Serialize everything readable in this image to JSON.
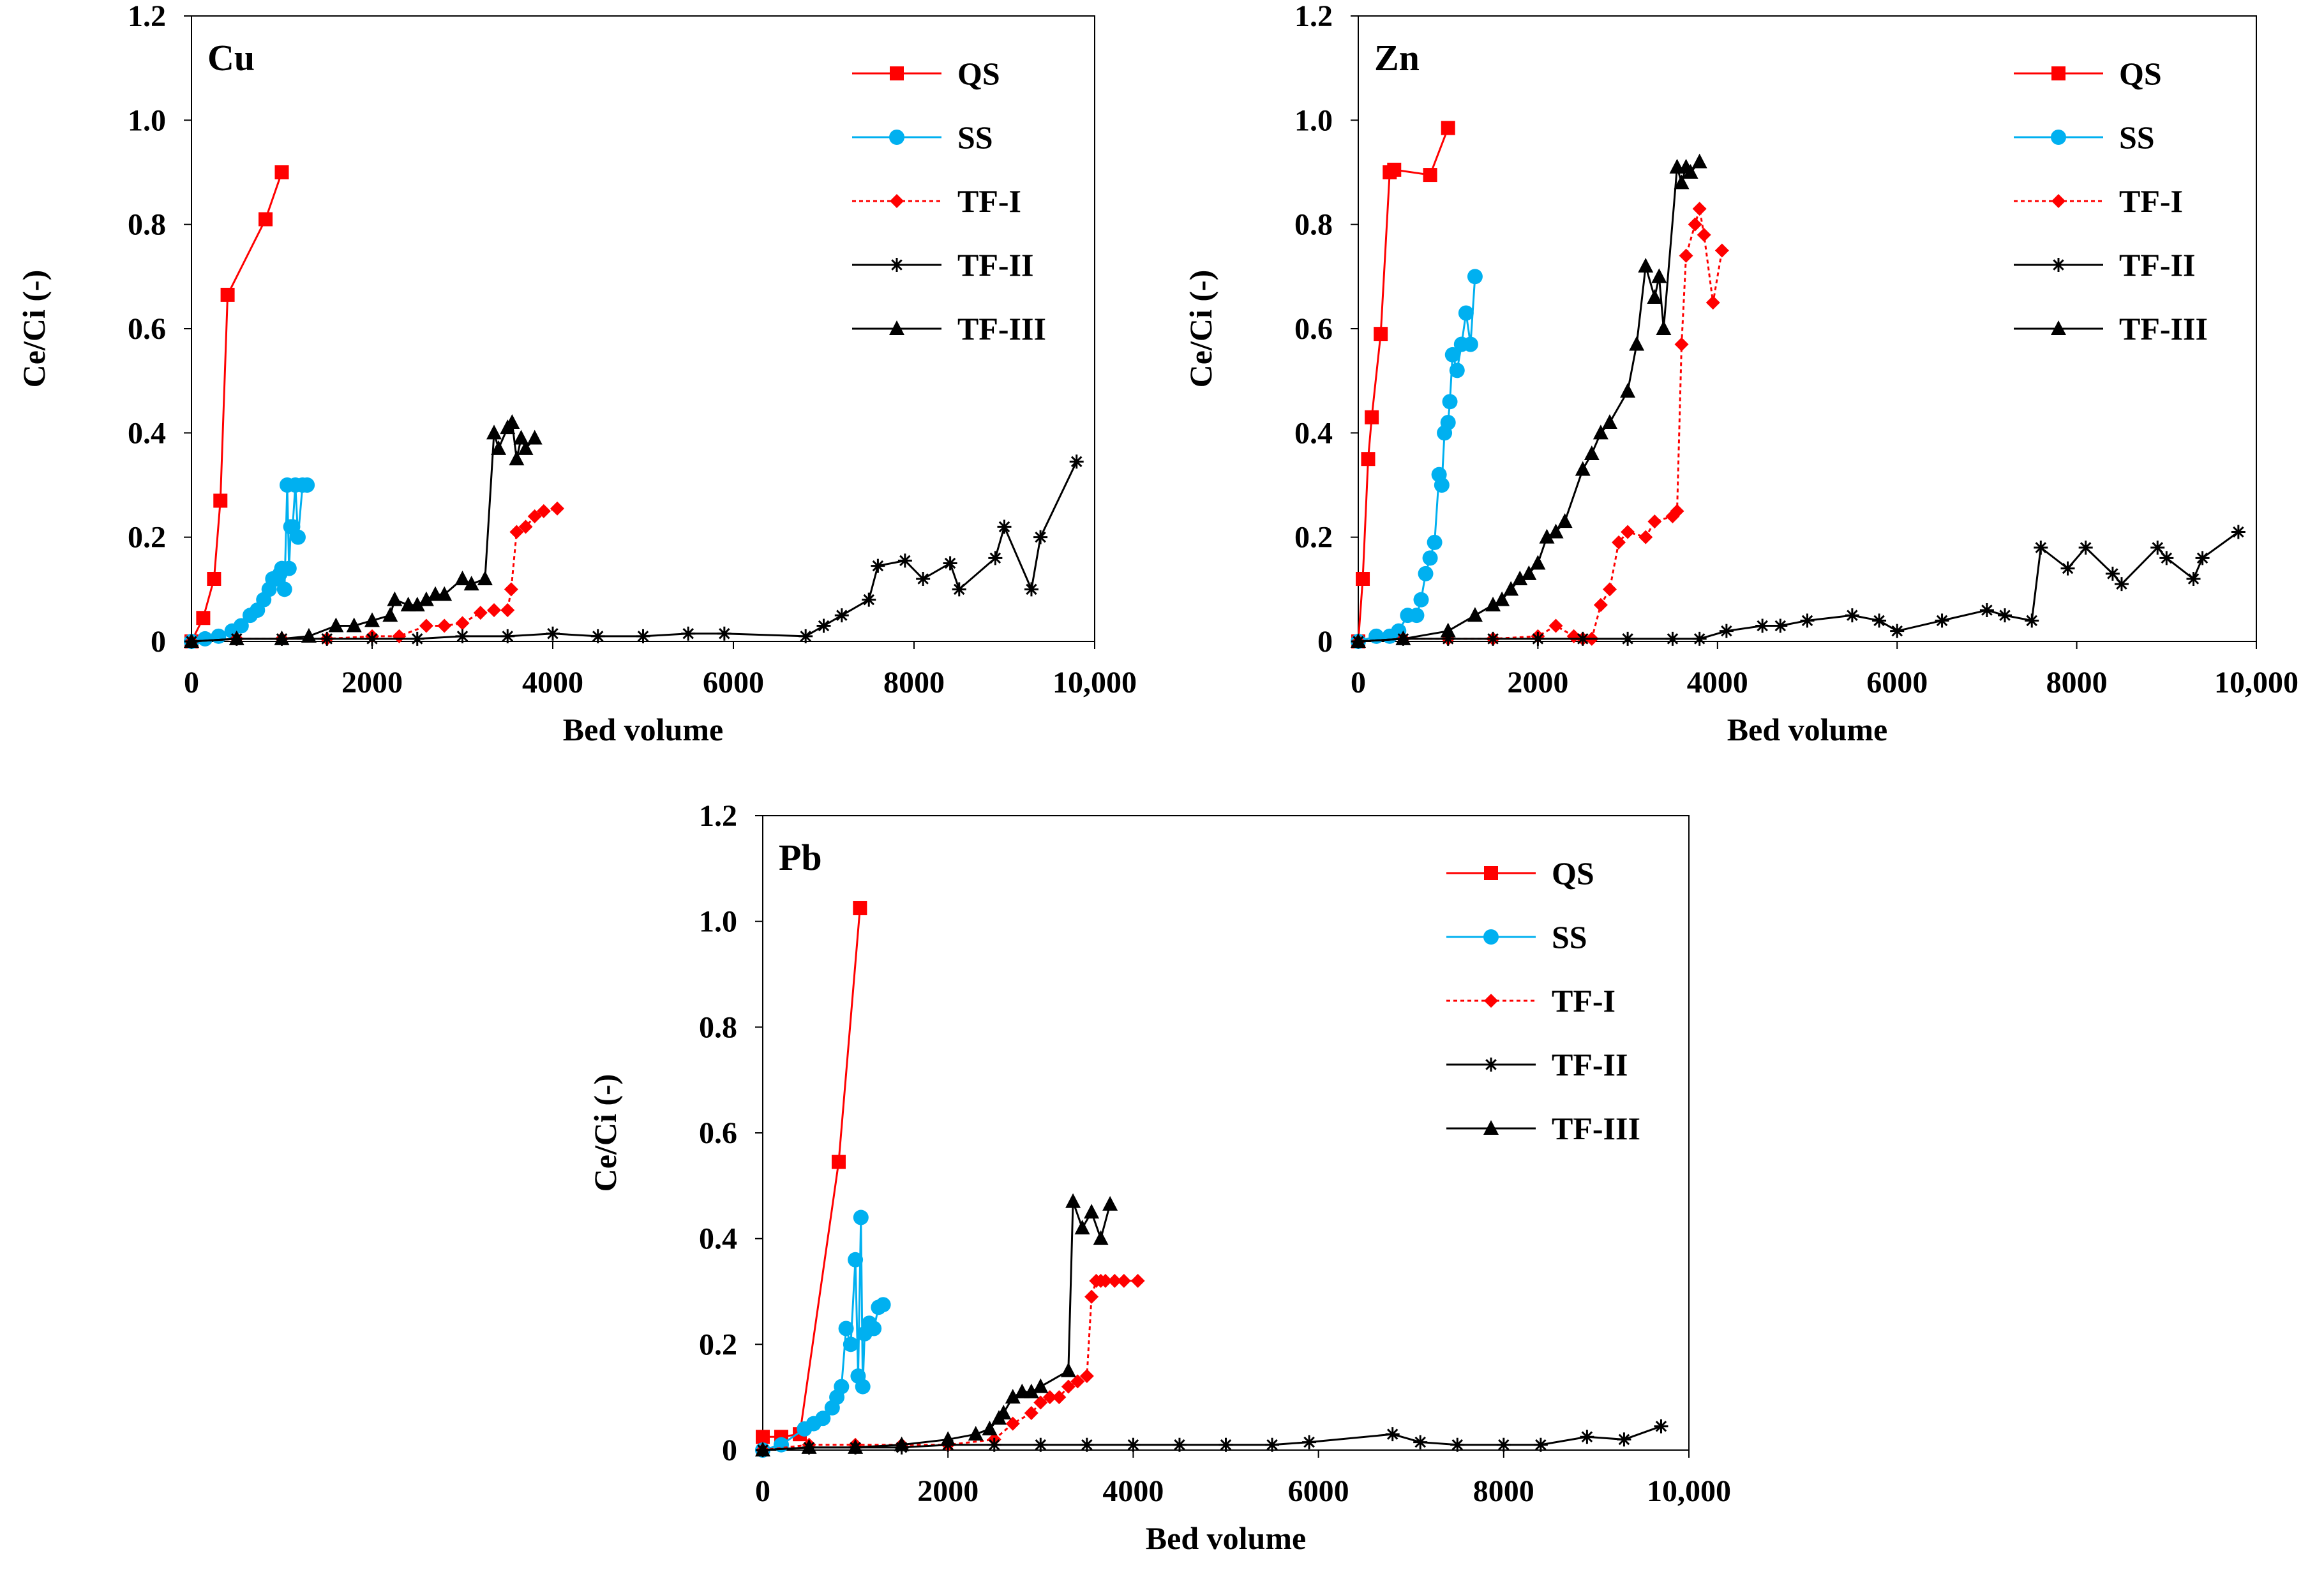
{
  "chart_data": [
    {
      "type": "line",
      "title": "Cu",
      "xlabel": "Bed volume",
      "ylabel": "Ce/Ci (-)",
      "xlim": [
        0,
        10000
      ],
      "ylim": [
        0,
        1.2
      ],
      "xticks": [
        "0",
        "2000",
        "4000",
        "6000",
        "8000",
        "10,000"
      ],
      "yticks": [
        "0",
        "0.2",
        "0.4",
        "0.6",
        "0.8",
        "1.0",
        "1.2"
      ],
      "legend_position": "top-right",
      "series": [
        {
          "name": "QS",
          "color": "#ff0000",
          "marker": "square",
          "dash": "solid",
          "x": [
            0,
            130,
            250,
            320,
            400,
            820,
            1000
          ],
          "y": [
            0,
            0.045,
            0.12,
            0.27,
            0.665,
            0.81,
            0.9
          ]
        },
        {
          "name": "SS",
          "color": "#00b0f0",
          "marker": "circle",
          "dash": "solid",
          "x": [
            0,
            150,
            300,
            450,
            550,
            650,
            730,
            800,
            860,
            900,
            950,
            980,
            1000,
            1030,
            1060,
            1080,
            1100,
            1120,
            1150,
            1180,
            1230,
            1280
          ],
          "y": [
            0,
            0.005,
            0.01,
            0.02,
            0.03,
            0.05,
            0.06,
            0.08,
            0.1,
            0.12,
            0.12,
            0.13,
            0.14,
            0.1,
            0.3,
            0.14,
            0.22,
            0.22,
            0.3,
            0.2,
            0.3,
            0.3
          ]
        },
        {
          "name": "TF-I",
          "color": "#ff0000",
          "marker": "diamond",
          "dash": "dashed",
          "x": [
            0,
            500,
            1000,
            1500,
            2000,
            2300,
            2600,
            2800,
            3000,
            3200,
            3350,
            3500,
            3540,
            3600,
            3700,
            3800,
            3900,
            4050
          ],
          "y": [
            0,
            0.005,
            0.005,
            0.005,
            0.01,
            0.01,
            0.03,
            0.03,
            0.035,
            0.055,
            0.06,
            0.06,
            0.1,
            0.21,
            0.22,
            0.24,
            0.25,
            0.255
          ]
        },
        {
          "name": "TF-II",
          "color": "#000000",
          "marker": "star",
          "dash": "solid",
          "x": [
            0,
            500,
            1000,
            1500,
            2000,
            2500,
            3000,
            3500,
            4000,
            4500,
            5000,
            5500,
            5900,
            6800,
            7000,
            7200,
            7500,
            7600,
            7900,
            8100,
            8400,
            8500,
            8900,
            9000,
            9300,
            9400,
            9800
          ],
          "y": [
            0,
            0.005,
            0.005,
            0.005,
            0.005,
            0.005,
            0.01,
            0.01,
            0.015,
            0.01,
            0.01,
            0.015,
            0.015,
            0.01,
            0.03,
            0.05,
            0.08,
            0.145,
            0.155,
            0.12,
            0.15,
            0.1,
            0.16,
            0.22,
            0.1,
            0.2,
            0.345
          ]
        },
        {
          "name": "TF-III",
          "color": "#000000",
          "marker": "triangle",
          "dash": "solid",
          "x": [
            0,
            500,
            1000,
            1300,
            1600,
            1800,
            2000,
            2200,
            2250,
            2400,
            2500,
            2600,
            2700,
            2800,
            3000,
            3100,
            3250,
            3350,
            3400,
            3500,
            3550,
            3600,
            3650,
            3700,
            3800
          ],
          "y": [
            0,
            0.005,
            0.005,
            0.01,
            0.03,
            0.03,
            0.04,
            0.05,
            0.08,
            0.07,
            0.07,
            0.08,
            0.09,
            0.09,
            0.12,
            0.11,
            0.12,
            0.4,
            0.37,
            0.41,
            0.42,
            0.35,
            0.39,
            0.37,
            0.39
          ]
        }
      ]
    },
    {
      "type": "line",
      "title": "Zn",
      "xlabel": "Bed volume",
      "ylabel": "Ce/Ci (-)",
      "xlim": [
        0,
        10000
      ],
      "ylim": [
        0,
        1.2
      ],
      "xticks": [
        "0",
        "2000",
        "4000",
        "6000",
        "8000",
        "10,000"
      ],
      "yticks": [
        "0",
        "0.2",
        "0.4",
        "0.6",
        "0.8",
        "1.0",
        "1.2"
      ],
      "legend_position": "top-right",
      "series": [
        {
          "name": "QS",
          "color": "#ff0000",
          "marker": "square",
          "dash": "solid",
          "x": [
            0,
            50,
            110,
            150,
            250,
            350,
            400,
            800,
            1000
          ],
          "y": [
            0,
            0.12,
            0.35,
            0.43,
            0.59,
            0.9,
            0.905,
            0.895,
            0.985
          ]
        },
        {
          "name": "SS",
          "color": "#00b0f0",
          "marker": "circle",
          "dash": "solid",
          "x": [
            0,
            200,
            350,
            450,
            550,
            650,
            700,
            750,
            800,
            850,
            900,
            930,
            960,
            1000,
            1020,
            1050,
            1100,
            1150,
            1200,
            1250,
            1300
          ],
          "y": [
            0,
            0.01,
            0.01,
            0.02,
            0.05,
            0.05,
            0.08,
            0.13,
            0.16,
            0.19,
            0.32,
            0.3,
            0.4,
            0.42,
            0.46,
            0.55,
            0.52,
            0.57,
            0.63,
            0.57,
            0.7
          ]
        },
        {
          "name": "TF-I",
          "color": "#ff0000",
          "marker": "diamond",
          "dash": "dashed",
          "x": [
            0,
            500,
            1000,
            1500,
            2000,
            2200,
            2400,
            2500,
            2600,
            2700,
            2800,
            2900,
            3000,
            3200,
            3300,
            3500,
            3550,
            3600,
            3650,
            3750,
            3800,
            3850,
            3950,
            4050
          ],
          "y": [
            0,
            0.005,
            0.005,
            0.005,
            0.01,
            0.03,
            0.01,
            0.005,
            0.005,
            0.07,
            0.1,
            0.19,
            0.21,
            0.2,
            0.23,
            0.24,
            0.25,
            0.57,
            0.74,
            0.8,
            0.83,
            0.78,
            0.65,
            0.75
          ]
        },
        {
          "name": "TF-II",
          "color": "#000000",
          "marker": "star",
          "dash": "solid",
          "x": [
            0,
            500,
            1000,
            1500,
            2000,
            2500,
            3000,
            3500,
            3800,
            4100,
            4500,
            4700,
            5000,
            5500,
            5800,
            6000,
            6500,
            7000,
            7200,
            7500,
            7600,
            7900,
            8100,
            8400,
            8500,
            8900,
            9000,
            9300,
            9400,
            9800
          ],
          "y": [
            0,
            0.005,
            0.005,
            0.005,
            0.005,
            0.005,
            0.005,
            0.005,
            0.005,
            0.02,
            0.03,
            0.03,
            0.04,
            0.05,
            0.04,
            0.02,
            0.04,
            0.06,
            0.05,
            0.04,
            0.18,
            0.14,
            0.18,
            0.13,
            0.11,
            0.18,
            0.16,
            0.12,
            0.16,
            0.21
          ]
        },
        {
          "name": "TF-III",
          "color": "#000000",
          "marker": "triangle",
          "dash": "solid",
          "x": [
            0,
            500,
            1000,
            1300,
            1500,
            1600,
            1700,
            1800,
            1900,
            2000,
            2100,
            2200,
            2300,
            2500,
            2600,
            2700,
            2800,
            3000,
            3100,
            3200,
            3300,
            3350,
            3400,
            3550,
            3600,
            3650,
            3700,
            3800
          ],
          "y": [
            0,
            0.005,
            0.02,
            0.05,
            0.07,
            0.08,
            0.1,
            0.12,
            0.13,
            0.15,
            0.2,
            0.21,
            0.23,
            0.33,
            0.36,
            0.4,
            0.42,
            0.48,
            0.57,
            0.72,
            0.66,
            0.7,
            0.6,
            0.91,
            0.88,
            0.91,
            0.9,
            0.92
          ]
        }
      ]
    },
    {
      "type": "line",
      "title": "Pb",
      "xlabel": "Bed volume",
      "ylabel": "Ce/Ci (-)",
      "xlim": [
        0,
        10000
      ],
      "ylim": [
        0,
        1.2
      ],
      "xticks": [
        "0",
        "2000",
        "4000",
        "6000",
        "8000",
        "10,000"
      ],
      "yticks": [
        "0",
        "0.2",
        "0.4",
        "0.6",
        "0.8",
        "1.0",
        "1.2"
      ],
      "legend_position": "top-right",
      "series": [
        {
          "name": "QS",
          "color": "#ff0000",
          "marker": "square",
          "dash": "solid",
          "x": [
            0,
            200,
            400,
            820,
            1050
          ],
          "y": [
            0.025,
            0.025,
            0.03,
            0.545,
            1.025
          ]
        },
        {
          "name": "SS",
          "color": "#00b0f0",
          "marker": "circle",
          "dash": "solid",
          "x": [
            0,
            200,
            450,
            550,
            650,
            750,
            800,
            850,
            900,
            950,
            1000,
            1030,
            1060,
            1080,
            1100,
            1150,
            1200,
            1250,
            1300
          ],
          "y": [
            0,
            0.01,
            0.04,
            0.05,
            0.06,
            0.08,
            0.1,
            0.12,
            0.23,
            0.2,
            0.36,
            0.14,
            0.44,
            0.12,
            0.22,
            0.24,
            0.23,
            0.27,
            0.275
          ]
        },
        {
          "name": "TF-I",
          "color": "#ff0000",
          "marker": "diamond",
          "dash": "dashed",
          "x": [
            0,
            500,
            1000,
            1500,
            2000,
            2500,
            2700,
            2900,
            3000,
            3100,
            3200,
            3300,
            3400,
            3500,
            3550,
            3600,
            3650,
            3700,
            3800,
            3900,
            4050
          ],
          "y": [
            0,
            0.01,
            0.01,
            0.01,
            0.01,
            0.02,
            0.05,
            0.07,
            0.09,
            0.1,
            0.1,
            0.12,
            0.13,
            0.14,
            0.29,
            0.32,
            0.32,
            0.32,
            0.32,
            0.32,
            0.32
          ]
        },
        {
          "name": "TF-II",
          "color": "#000000",
          "marker": "star",
          "dash": "solid",
          "x": [
            0,
            500,
            1000,
            1500,
            2000,
            2500,
            3000,
            3500,
            4000,
            4500,
            5000,
            5500,
            5900,
            6800,
            7100,
            7500,
            8000,
            8400,
            8900,
            9300,
            9700
          ],
          "y": [
            0,
            0.005,
            0.005,
            0.005,
            0.01,
            0.01,
            0.01,
            0.01,
            0.01,
            0.01,
            0.01,
            0.01,
            0.015,
            0.03,
            0.015,
            0.01,
            0.01,
            0.01,
            0.025,
            0.02,
            0.045
          ]
        },
        {
          "name": "TF-III",
          "color": "#000000",
          "marker": "triangle",
          "dash": "solid",
          "x": [
            0,
            500,
            1000,
            1500,
            2000,
            2300,
            2450,
            2550,
            2600,
            2700,
            2800,
            2900,
            3000,
            3300,
            3350,
            3450,
            3550,
            3650,
            3750
          ],
          "y": [
            0,
            0.005,
            0.005,
            0.01,
            0.02,
            0.03,
            0.04,
            0.06,
            0.07,
            0.1,
            0.11,
            0.11,
            0.12,
            0.15,
            0.47,
            0.42,
            0.45,
            0.4,
            0.465
          ]
        }
      ]
    }
  ]
}
